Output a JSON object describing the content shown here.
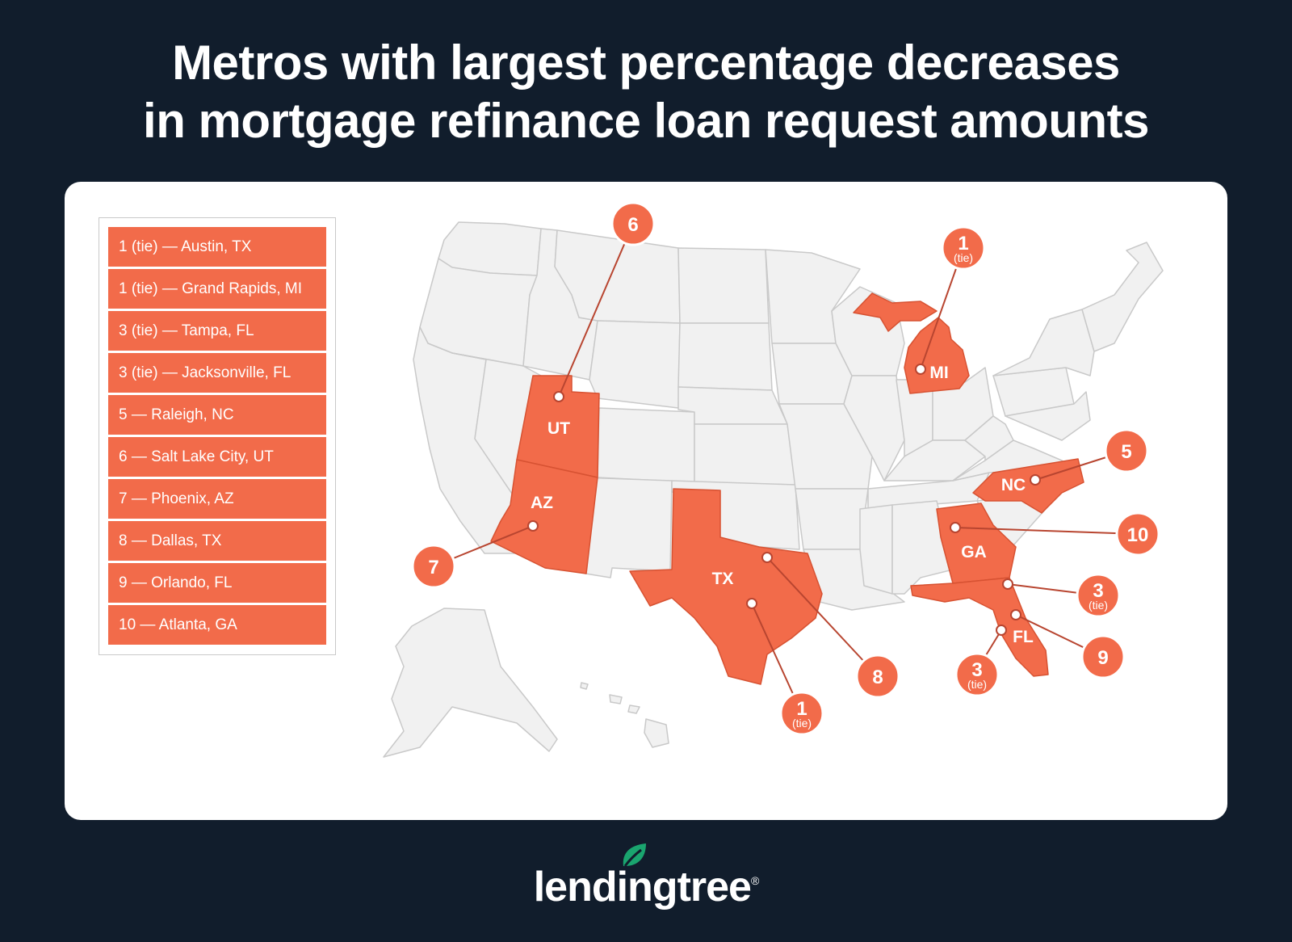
{
  "title": {
    "line1": "Metros with largest percentage decreases",
    "line2": "in mortgage refinance loan request amounts"
  },
  "legend": [
    "1 (tie) — Austin, TX",
    "1 (tie) — Grand Rapids, MI",
    "3 (tie) — Tampa, FL",
    "3 (tie) — Jacksonville, FL",
    "5 — Raleigh, NC",
    "6 — Salt Lake City, UT",
    "7 — Phoenix, AZ",
    "8 — Dallas, TX",
    "9 — Orlando, FL",
    "10 — Atlanta, GA"
  ],
  "map": {
    "state_labels": [
      "UT",
      "AZ",
      "TX",
      "MI",
      "NC",
      "GA",
      "FL"
    ],
    "markers": [
      {
        "rank": "6",
        "sub": "",
        "metro": "Salt Lake City, UT"
      },
      {
        "rank": "1",
        "sub": "(tie)",
        "metro": "Grand Rapids, MI"
      },
      {
        "rank": "5",
        "sub": "",
        "metro": "Raleigh, NC"
      },
      {
        "rank": "10",
        "sub": "",
        "metro": "Atlanta, GA"
      },
      {
        "rank": "3",
        "sub": "(tie)",
        "metro": "Tampa, FL"
      },
      {
        "rank": "9",
        "sub": "",
        "metro": "Orlando, FL"
      },
      {
        "rank": "3",
        "sub": "(tie)",
        "metro": "Jacksonville, FL"
      },
      {
        "rank": "8",
        "sub": "",
        "metro": "Dallas, TX"
      },
      {
        "rank": "1",
        "sub": "(tie)",
        "metro": "Austin, TX"
      },
      {
        "rank": "7",
        "sub": "",
        "metro": "Phoenix, AZ"
      }
    ]
  },
  "colors": {
    "background": "#111d2c",
    "highlight": "#f26b4a",
    "state_fill": "#f1f1f1",
    "logo_leaf": "#1aa56f"
  },
  "logo": {
    "icon": "leaf-icon",
    "text": "lendingtree",
    "mark": "®"
  }
}
